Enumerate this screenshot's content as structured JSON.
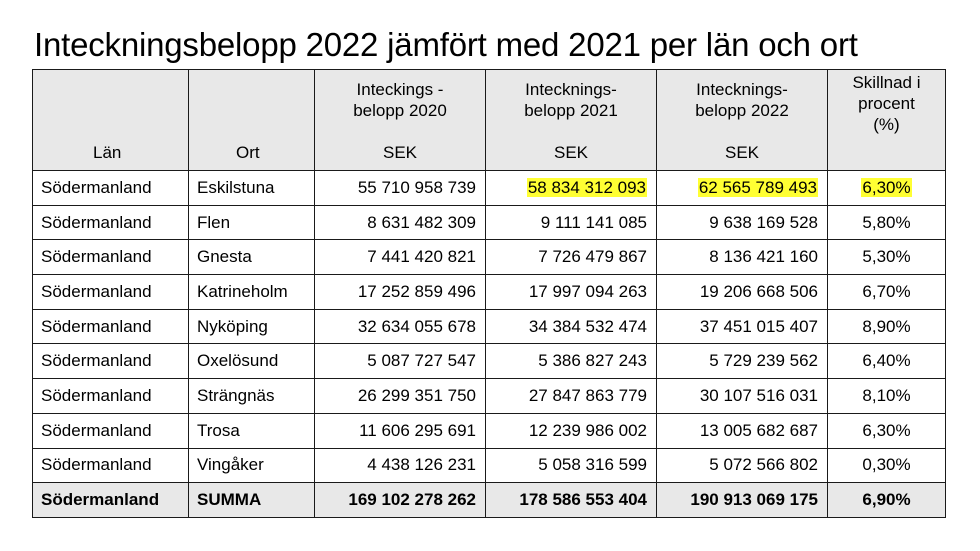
{
  "title": "Inteckningsbelopp 2022 jämfört med 2021 per län och ort",
  "highlight_color": "#ffff33",
  "header_bg": "#e8e8e8",
  "headers": {
    "lan": "Län",
    "ort": "Ort",
    "b2020_top": "Inteckings -\nbelopp 2020",
    "b2020_bottom": "SEK",
    "b2021_top": "Intecknings-\nbelopp 2021",
    "b2021_bottom": "SEK",
    "b2022_top": "Intecknings-\nbelopp 2022",
    "b2022_bottom": "SEK",
    "skillnad": "Skillnad i\nprocent\n(%)"
  },
  "rows": [
    {
      "lan": "Södermanland",
      "ort": "Eskilstuna",
      "b2020": "55 710 958 739",
      "b2021": "58 834 312 093",
      "b2022": "62 565 789 493",
      "pct": "6,30%"
    },
    {
      "lan": "Södermanland",
      "ort": "Flen",
      "b2020": "8 631 482 309",
      "b2021": "9 111 141 085",
      "b2022": "9 638 169 528",
      "pct": "5,80%"
    },
    {
      "lan": "Södermanland",
      "ort": "Gnesta",
      "b2020": "7 441 420 821",
      "b2021": "7 726 479 867",
      "b2022": "8 136 421 160",
      "pct": "5,30%"
    },
    {
      "lan": "Södermanland",
      "ort": "Katrineholm",
      "b2020": "17 252 859 496",
      "b2021": "17 997 094 263",
      "b2022": "19 206 668 506",
      "pct": "6,70%"
    },
    {
      "lan": "Södermanland",
      "ort": "Nyköping",
      "b2020": "32 634 055 678",
      "b2021": "34 384 532 474",
      "b2022": "37 451 015 407",
      "pct": "8,90%"
    },
    {
      "lan": "Södermanland",
      "ort": "Oxelösund",
      "b2020": "5 087 727 547",
      "b2021": "5 386 827 243",
      "b2022": "5 729 239 562",
      "pct": "6,40%"
    },
    {
      "lan": "Södermanland",
      "ort": "Strängnäs",
      "b2020": "26 299 351 750",
      "b2021": "27 847 863 779",
      "b2022": "30 107 516 031",
      "pct": "8,10%"
    },
    {
      "lan": "Södermanland",
      "ort": "Trosa",
      "b2020": "11 606 295 691",
      "b2021": "12 239 986 002",
      "b2022": "13 005 682 687",
      "pct": "6,30%"
    },
    {
      "lan": "Södermanland",
      "ort": "Vingåker",
      "b2020": "4 438 126 231",
      "b2021": "5 058 316 599",
      "b2022": "5 072 566 802",
      "pct": "0,30%"
    }
  ],
  "summary": {
    "lan": "Södermanland",
    "ort": "SUMMA",
    "b2020": "169 102 278 262",
    "b2021": "178 586 553 404",
    "b2022": "190 913 069 175",
    "pct": "6,90%"
  }
}
